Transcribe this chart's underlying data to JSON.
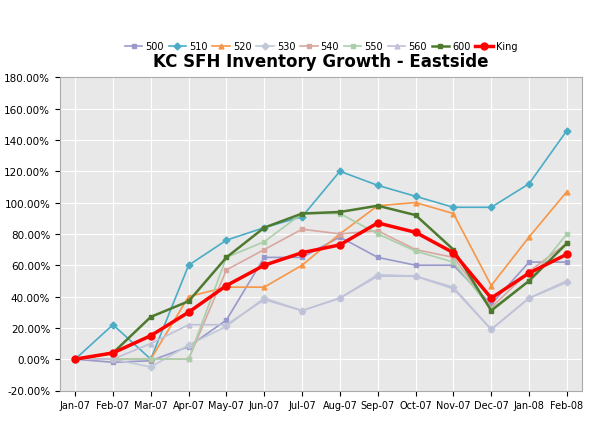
{
  "title": "KC SFH Inventory Growth - Eastside",
  "x_labels": [
    "Jan-07",
    "Feb-07",
    "Mar-07",
    "Apr-07",
    "May-07",
    "Jun-07",
    "Jul-07",
    "Aug-07",
    "Sep-07",
    "Oct-07",
    "Nov-07",
    "Dec-07",
    "Jan-08",
    "Feb-08"
  ],
  "series": [
    {
      "name": "500",
      "color": "#9999CC",
      "marker": "s",
      "linewidth": 1.2,
      "markersize": 3.5,
      "data": [
        0.0,
        -0.02,
        -0.01,
        0.08,
        0.25,
        0.65,
        0.65,
        0.78,
        0.65,
        0.6,
        0.6,
        0.35,
        0.62,
        0.62
      ]
    },
    {
      "name": "510",
      "color": "#4BACC6",
      "marker": "D",
      "linewidth": 1.2,
      "markersize": 3.5,
      "data": [
        0.0,
        0.22,
        0.0,
        0.6,
        0.76,
        0.84,
        0.91,
        1.2,
        1.11,
        1.04,
        0.97,
        0.97,
        1.12,
        1.46
      ]
    },
    {
      "name": "520",
      "color": "#F79646",
      "marker": "^",
      "linewidth": 1.2,
      "markersize": 3.5,
      "data": [
        0.0,
        0.0,
        0.0,
        0.4,
        0.46,
        0.46,
        0.6,
        0.8,
        0.98,
        1.0,
        0.93,
        0.47,
        0.78,
        1.07
      ]
    },
    {
      "name": "530",
      "color": "#C0C9D8",
      "marker": "D",
      "linewidth": 1.2,
      "markersize": 3.5,
      "data": [
        0.0,
        0.0,
        -0.05,
        0.09,
        0.21,
        0.39,
        0.31,
        0.39,
        0.54,
        0.53,
        0.46,
        0.19,
        0.39,
        0.49
      ]
    },
    {
      "name": "540",
      "color": "#D8A8A0",
      "marker": "s",
      "linewidth": 1.2,
      "markersize": 3.5,
      "data": [
        0.0,
        0.0,
        0.0,
        0.0,
        0.57,
        0.7,
        0.83,
        0.8,
        0.82,
        0.7,
        0.65,
        0.33,
        0.56,
        0.74
      ]
    },
    {
      "name": "550",
      "color": "#AACFAA",
      "marker": "s",
      "linewidth": 1.2,
      "markersize": 3.5,
      "data": [
        0.0,
        0.0,
        0.0,
        0.0,
        0.65,
        0.75,
        0.93,
        0.93,
        0.8,
        0.69,
        0.62,
        0.32,
        0.5,
        0.8
      ]
    },
    {
      "name": "560",
      "color": "#C0C0D8",
      "marker": "^",
      "linewidth": 1.2,
      "markersize": 3.5,
      "data": [
        0.0,
        0.0,
        0.1,
        0.22,
        0.22,
        0.38,
        0.31,
        0.39,
        0.53,
        0.53,
        0.45,
        0.19,
        0.39,
        0.5
      ]
    },
    {
      "name": "600",
      "color": "#4E7A30",
      "marker": "s",
      "linewidth": 1.8,
      "markersize": 3.5,
      "data": [
        0.0,
        0.04,
        0.27,
        0.37,
        0.65,
        0.84,
        0.93,
        0.94,
        0.98,
        0.92,
        0.7,
        0.31,
        0.5,
        0.74
      ]
    },
    {
      "name": "King",
      "color": "#FF0000",
      "marker": "o",
      "linewidth": 2.5,
      "markersize": 5,
      "data": [
        0.0,
        0.04,
        0.15,
        0.3,
        0.47,
        0.6,
        0.68,
        0.73,
        0.87,
        0.81,
        0.68,
        0.39,
        0.55,
        0.67
      ]
    }
  ],
  "background_color": "#FFFFFF",
  "plot_bg_color": "#E8E8E8",
  "grid_color": "#FFFFFF",
  "ymin": -0.2,
  "ymax": 1.8,
  "yticks": [
    -0.2,
    0.0,
    0.2,
    0.4,
    0.6,
    0.8,
    1.0,
    1.2,
    1.4,
    1.6,
    1.8
  ],
  "ytick_labels": [
    "-20.00%",
    "0.00%",
    "20.00%",
    "40.00%",
    "60.00%",
    "80.00%",
    "100.00%",
    "120.00%",
    "140.00%",
    "160.00%",
    "180.00%"
  ]
}
